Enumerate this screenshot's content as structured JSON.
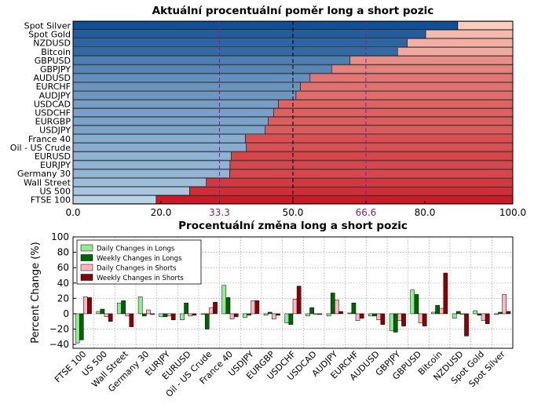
{
  "chart_data": [
    {
      "type": "bar",
      "orientation": "horizontal",
      "stacked": true,
      "title": "Aktuální procentuální poměr long a short pozic",
      "categories": [
        "Spot Silver",
        "Spot Gold",
        "NZDUSD",
        "Bitcoin",
        "GBPUSD",
        "GBPJPY",
        "AUDUSD",
        "EURCHF",
        "AUDJPY",
        "USDCAD",
        "USDCHF",
        "EURGBP",
        "USDJPY",
        "France 40",
        "Oil - US Crude",
        "EURUSD",
        "EURJPY",
        "Germany 30",
        "Wall Street",
        "US 500",
        "FTSE 100"
      ],
      "series": [
        {
          "values": [
            87.5,
            80.2,
            76.0,
            73.8,
            63.0,
            58.8,
            53.9,
            51.7,
            50.7,
            46.7,
            45.6,
            44.4,
            43.7,
            39.2,
            39.4,
            36.0,
            35.7,
            35.6,
            30.3,
            26.5,
            18.9
          ]
        },
        {
          "values": [
            12.5,
            19.8,
            24.0,
            26.2,
            37.0,
            41.2,
            46.1,
            48.3,
            49.3,
            53.3,
            54.4,
            55.6,
            56.3,
            60.8,
            60.6,
            64.0,
            64.3,
            64.4,
            69.7,
            73.5,
            81.1
          ]
        }
      ],
      "xlim": [
        0,
        100
      ],
      "xticks": [
        "0.0",
        "20.0",
        "33.3",
        "50.0",
        "66.6",
        "80.0",
        "100.0"
      ],
      "xtick_values": [
        0,
        20,
        33.3,
        50,
        66.6,
        80,
        100
      ],
      "reference_lines": [
        33.3,
        50,
        66.6
      ]
    },
    {
      "type": "bar",
      "title": "Procentuální změna long a short pozic",
      "ylabel": "Percent Change (%)",
      "ylim": [
        -45,
        100
      ],
      "yticks": [
        -40,
        -20,
        0,
        20,
        40,
        60,
        80,
        100
      ],
      "grid": true,
      "legend": "top-left",
      "categories": [
        "FTSE 100",
        "US 500",
        "Wall Street",
        "Germany 30",
        "EURJPY",
        "EURUSD",
        "Oil - US Crude",
        "France 40",
        "USDJPY",
        "EURGBP",
        "USDCHF",
        "USDCAD",
        "AUDJPY",
        "EURCHF",
        "AUDUSD",
        "GBPJPY",
        "GBPUSD",
        "Bitcoin",
        "NZDUSD",
        "Spot Gold",
        "Spot Silver"
      ],
      "series": [
        {
          "name": "Daily Changes in Longs",
          "color": "#90ee90",
          "values": [
            -38,
            3,
            14,
            22,
            -4,
            -8,
            -1,
            37,
            -5,
            -2,
            -12,
            -3,
            -3,
            1,
            -3,
            -22,
            31,
            2,
            -6,
            4,
            -1
          ]
        },
        {
          "name": "Weekly Changes in Longs",
          "color": "#006400",
          "values": [
            -34,
            6,
            17,
            -3,
            -4,
            14,
            -20,
            21,
            -2,
            2,
            -14,
            8,
            27,
            14,
            -3,
            -24,
            25,
            11,
            3,
            -2,
            2
          ]
        },
        {
          "name": "Daily Changes in Shorts",
          "color": "#ffb6c1",
          "values": [
            22,
            -4,
            -3,
            5,
            -3,
            -3,
            8,
            -7,
            17,
            -7,
            19,
            -1,
            18,
            -9,
            -8,
            -9,
            -12,
            7,
            -1,
            -9,
            25
          ]
        },
        {
          "name": "Weekly Changes in Shorts",
          "color": "#8b0000",
          "values": [
            21,
            -10,
            -17,
            -1,
            -8,
            -2,
            15,
            -4,
            17,
            -2,
            36,
            -1,
            3,
            -6,
            -14,
            -16,
            -16,
            53,
            -29,
            -13,
            3
          ]
        }
      ]
    }
  ]
}
